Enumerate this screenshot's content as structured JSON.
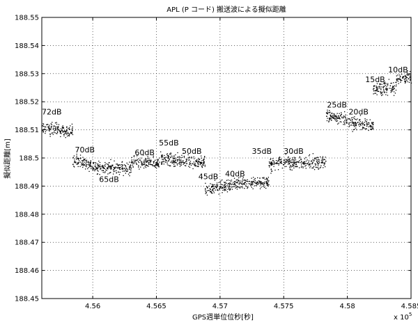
{
  "chart_data": {
    "type": "scatter",
    "title": "APL (P コード) 搬送波による擬似距離",
    "xlabel": "GPS週単位位秒[秒]",
    "ylabel": "擬似距離[m]",
    "x_multiplier_label": "x 10",
    "x_multiplier_exp": "5",
    "xlim": [
      455600,
      458500
    ],
    "ylim": [
      188.45,
      188.55
    ],
    "grid": true,
    "x_ticks": [
      {
        "value": 456000,
        "label": "4.56"
      },
      {
        "value": 456500,
        "label": "4.565"
      },
      {
        "value": 457000,
        "label": "4.57"
      },
      {
        "value": 457500,
        "label": "4.575"
      },
      {
        "value": 458000,
        "label": "4.58"
      },
      {
        "value": 458500,
        "label": "4.585"
      }
    ],
    "y_ticks": [
      {
        "value": 188.45,
        "label": "188.45"
      },
      {
        "value": 188.46,
        "label": "188.46"
      },
      {
        "value": 188.47,
        "label": "188.47"
      },
      {
        "value": 188.48,
        "label": "188.48"
      },
      {
        "value": 188.49,
        "label": "188.49"
      },
      {
        "value": 188.5,
        "label": "188.5"
      },
      {
        "value": 188.51,
        "label": "188.51"
      },
      {
        "value": 188.52,
        "label": "188.52"
      },
      {
        "value": 188.53,
        "label": "188.53"
      },
      {
        "value": 188.54,
        "label": "188.54"
      },
      {
        "value": 188.55,
        "label": "188.55"
      }
    ],
    "segments": [
      {
        "x0": 455600,
        "x1": 455840,
        "y0": 188.5105,
        "y1": 188.5095,
        "label": "72dB",
        "lx": 455600,
        "ly": 188.5155
      },
      {
        "x0": 455840,
        "x1": 456050,
        "y0": 188.4995,
        "y1": 188.4965,
        "label": "70dB",
        "lx": 455860,
        "ly": 188.502
      },
      {
        "x0": 456050,
        "x1": 456300,
        "y0": 188.4965,
        "y1": 188.4965,
        "label": "65dB",
        "lx": 456050,
        "ly": 188.4915
      },
      {
        "x0": 456300,
        "x1": 456520,
        "y0": 188.4985,
        "y1": 188.498,
        "label": "60dB",
        "lx": 456330,
        "ly": 188.501
      },
      {
        "x0": 456520,
        "x1": 456880,
        "y0": 188.4995,
        "y1": 188.4985,
        "label": "55dB",
        "lx": 456520,
        "ly": 188.5045
      },
      {
        "x0": 456880,
        "x1": 456880,
        "y0": 188.4985,
        "y1": 188.4985,
        "label": "50dB",
        "lx": 456700,
        "ly": 188.5015
      },
      {
        "x0": 456880,
        "x1": 457100,
        "y0": 188.489,
        "y1": 188.4905,
        "label": "45dB",
        "lx": 456830,
        "ly": 188.4925
      },
      {
        "x0": 457100,
        "x1": 457380,
        "y0": 188.491,
        "y1": 188.4915,
        "label": "40dB",
        "lx": 457040,
        "ly": 188.4935
      },
      {
        "x0": 457380,
        "x1": 457450,
        "y0": 188.4975,
        "y1": 188.4975,
        "label": "35dB",
        "lx": 457250,
        "ly": 188.5015
      },
      {
        "x0": 457450,
        "x1": 457830,
        "y0": 188.4985,
        "y1": 188.4985,
        "label": "30dB",
        "lx": 457500,
        "ly": 188.5015
      },
      {
        "x0": 457830,
        "x1": 458000,
        "y0": 188.515,
        "y1": 188.5135,
        "label": "25dB",
        "lx": 457840,
        "ly": 188.518
      },
      {
        "x0": 458000,
        "x1": 458200,
        "y0": 188.5125,
        "y1": 188.5115,
        "label": "20dB",
        "lx": 458010,
        "ly": 188.5155
      },
      {
        "x0": 458200,
        "x1": 458380,
        "y0": 188.5245,
        "y1": 188.525,
        "label": "15dB",
        "lx": 458140,
        "ly": 188.527
      },
      {
        "x0": 458380,
        "x1": 458560,
        "y0": 188.528,
        "y1": 188.529,
        "label": "10dB",
        "lx": 458320,
        "ly": 188.5305
      }
    ]
  }
}
